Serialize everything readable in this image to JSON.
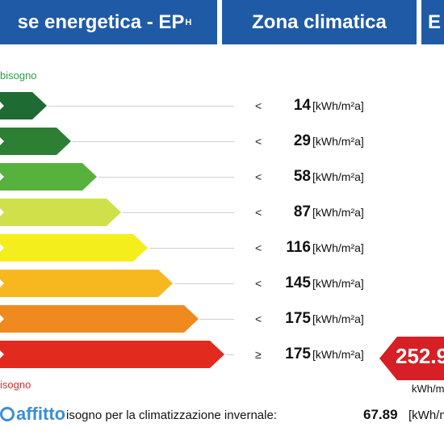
{
  "header": {
    "title_prefix": "se energetica - EP",
    "title_sub": "H",
    "zone_title": "Zona climatica",
    "third_label": "E"
  },
  "scale": {
    "top_label": "bisogno",
    "bottom_label": "isogno",
    "rows": [
      {
        "cmp": "<",
        "value": "14",
        "unit": "[kWh/m²a]",
        "color": "#1e6b33"
      },
      {
        "cmp": "<",
        "value": "29",
        "unit": "[kWh/m²a]",
        "color": "#2d7f34"
      },
      {
        "cmp": "<",
        "value": "58",
        "unit": "[kWh/m²a]",
        "color": "#56b23d"
      },
      {
        "cmp": "<",
        "value": "87",
        "unit": "[kWh/m²a]",
        "color": "#cfe04a"
      },
      {
        "cmp": "<",
        "value": "116",
        "unit": "[kWh/m²a]",
        "color": "#f5ee1d"
      },
      {
        "cmp": "<",
        "value": "145",
        "unit": "[kWh/m²a]",
        "color": "#f7b81f"
      },
      {
        "cmp": "<",
        "value": "175",
        "unit": "[kWh/m²a]",
        "color": "#f08a1f"
      },
      {
        "cmp": "≥",
        "value": "175",
        "unit": "[kWh/m²a]",
        "color": "#e32a1f"
      }
    ]
  },
  "pointer": {
    "value": "252.9",
    "unit": "kWh/m",
    "color": "#d71f26"
  },
  "footer": {
    "logo_text": "affitto",
    "text": "isogno per la climatizzazione invernale:",
    "value": "67.89",
    "unit": "[kWh/m"
  }
}
